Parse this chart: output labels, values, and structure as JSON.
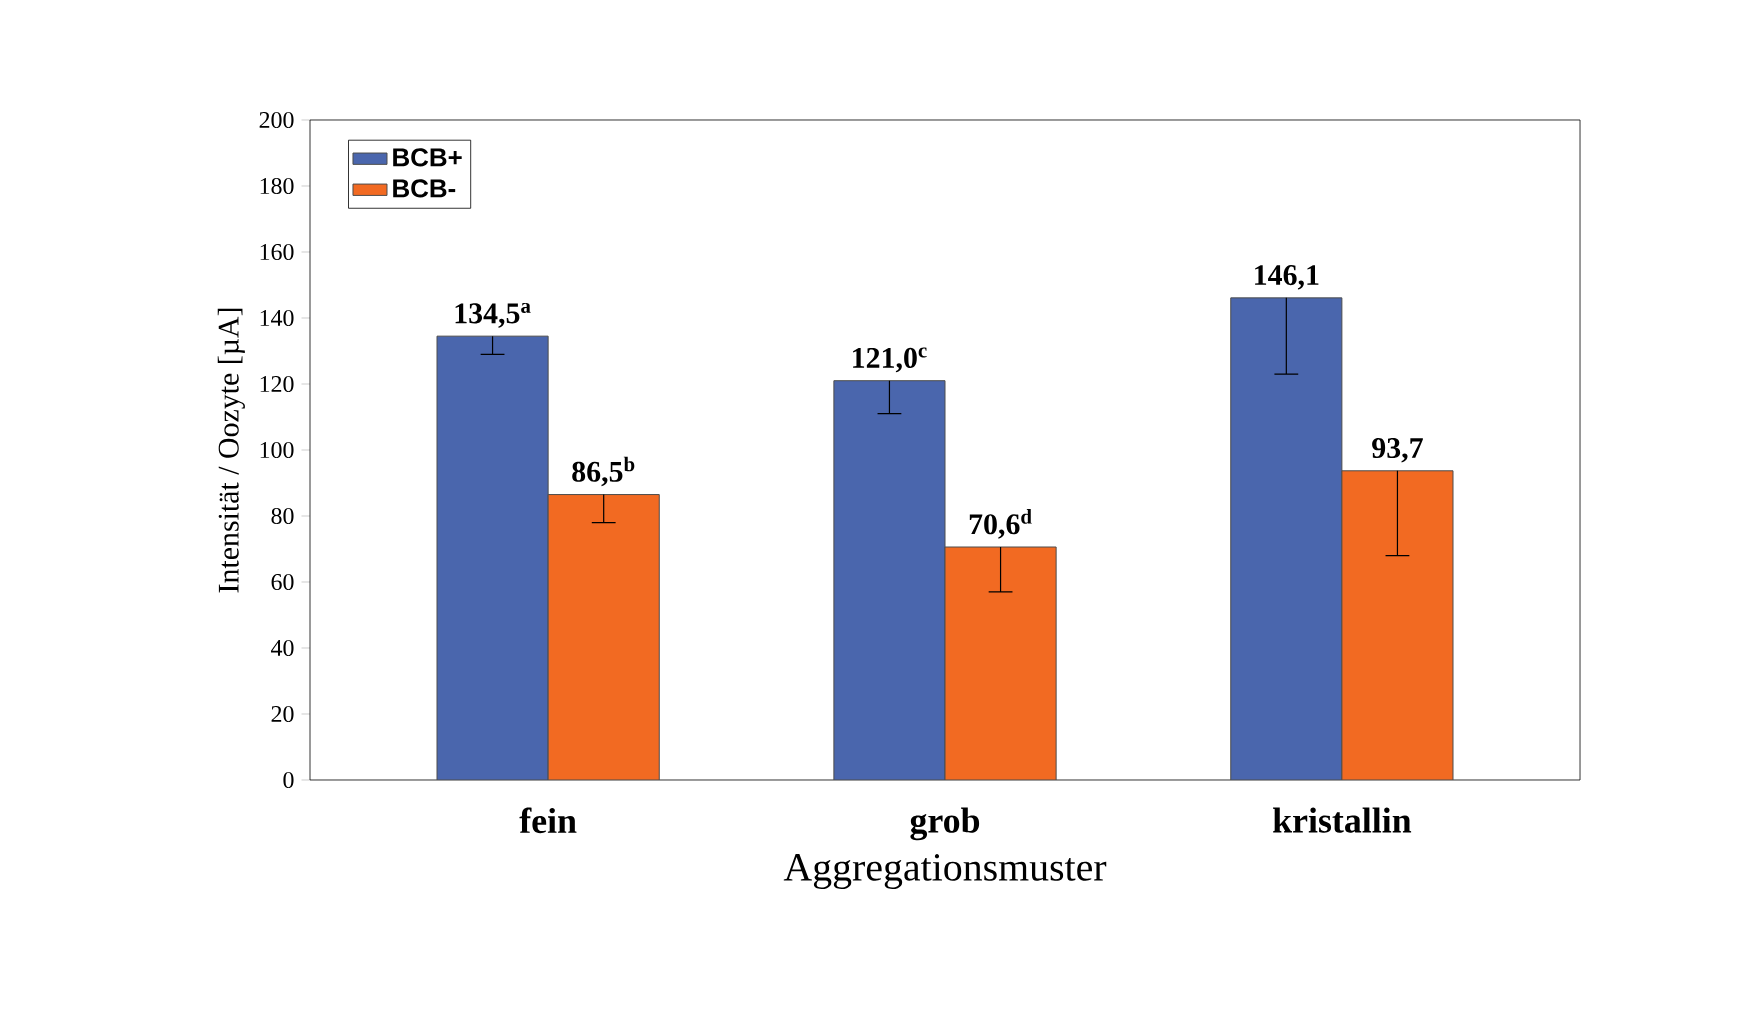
{
  "chart_data": {
    "type": "bar",
    "xlabel": "Aggregationsmuster",
    "ylabel": "Intensität / Oozyte [µA]",
    "categories": [
      "fein",
      "grob",
      "kristallin"
    ],
    "series": [
      {
        "name": "BCB+",
        "color": "#4a66ad",
        "values": [
          134.5,
          121.0,
          146.1
        ],
        "errors": [
          [
            129,
            134.5
          ],
          [
            111,
            121.0
          ],
          [
            123,
            146.1
          ]
        ],
        "value_labels": [
          "134,5$^{a}$",
          "121,0$^{c}$",
          "146,1"
        ]
      },
      {
        "name": "BCB-",
        "color": "#f26a22",
        "values": [
          86.5,
          70.6,
          93.7
        ],
        "errors": [
          [
            78,
            86.5
          ],
          [
            57,
            70.6
          ],
          [
            68,
            93.7
          ]
        ],
        "value_labels": [
          "86,5$^{b}$",
          "70,6$^{d}$",
          "93,7"
        ]
      }
    ],
    "ylim": [
      0,
      200
    ],
    "yticks": [
      0,
      20,
      40,
      60,
      80,
      100,
      120,
      140,
      160,
      180,
      200
    ],
    "grid": false,
    "legend": "top left"
  }
}
